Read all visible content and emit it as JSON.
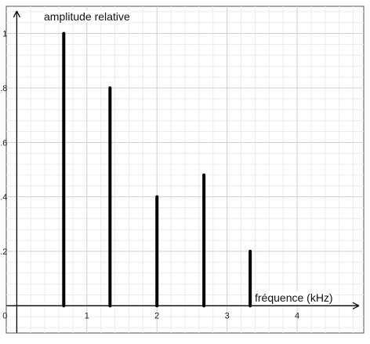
{
  "chart_data": {
    "type": "bar",
    "title": "",
    "xlabel": "fréquence (kHz)",
    "ylabel": "amplitude relative",
    "xlim": [
      -0.15,
      4.95
    ],
    "ylim": [
      -0.1,
      1.1
    ],
    "grid": true,
    "x_ticks": [
      0,
      1,
      2,
      3,
      4
    ],
    "y_ticks": [
      0.2,
      0.4,
      0.6,
      0.8,
      1
    ],
    "x_tick_labels": [
      "0",
      "1",
      "2",
      "3",
      "4"
    ],
    "y_tick_labels": [
      "0.2",
      "0.4",
      "0.6",
      "0.8",
      "1"
    ],
    "x": [
      0.67,
      1.33,
      2.0,
      2.67,
      3.33
    ],
    "values": [
      1.0,
      0.8,
      0.4,
      0.48,
      0.2
    ],
    "colors": {
      "bar": "#000000",
      "grid_major": "#cfcfcf",
      "grid_minor": "#ececec",
      "axis": "#000000"
    }
  }
}
